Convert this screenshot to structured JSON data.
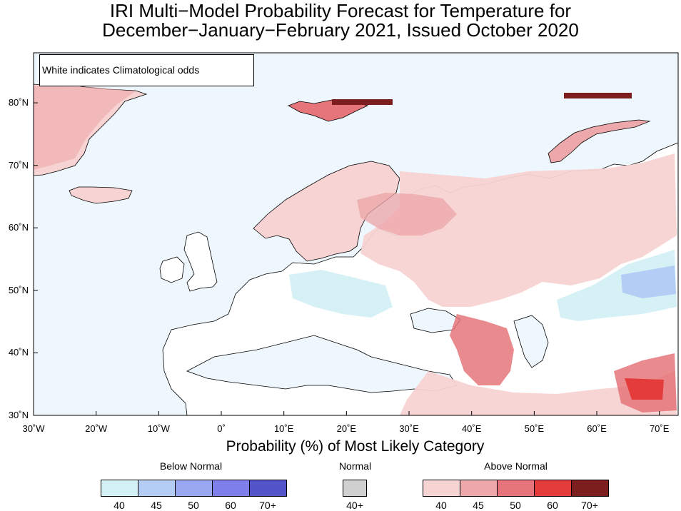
{
  "title": {
    "line1": "IRI Multi−Model Probability Forecast for Temperature for",
    "line2": "December−January−February 2021, Issued October 2020"
  },
  "map": {
    "note": "White indicates Climatological odds",
    "lon_range": [
      -30,
      73
    ],
    "lat_range": [
      30,
      88
    ],
    "lat_labels": [
      "80˚N",
      "70˚N",
      "60˚N",
      "50˚N",
      "40˚N",
      "30˚N"
    ],
    "lon_labels": [
      "30˚W",
      "20˚W",
      "10˚W",
      "0˚",
      "10˚E",
      "20˚E",
      "30˚E",
      "40˚E",
      "50˚E",
      "60˚E",
      "70˚E"
    ],
    "ocean_color": "#eef7fd",
    "land_color": "#ffffff"
  },
  "legend": {
    "title": "Probability (%) of Most Likely Category",
    "below": {
      "label": "Below Normal",
      "bins": [
        {
          "label": "40",
          "color": "#d3f0f5"
        },
        {
          "label": "45",
          "color": "#b3cdf4"
        },
        {
          "label": "50",
          "color": "#9aa8f2"
        },
        {
          "label": "60",
          "color": "#7e7fea"
        },
        {
          "label": "70+",
          "color": "#5354c8"
        }
      ]
    },
    "normal": {
      "label": "Normal",
      "bins": [
        {
          "label": "40+",
          "color": "#d0d0d0"
        }
      ]
    },
    "above": {
      "label": "Above Normal",
      "bins": [
        {
          "label": "40",
          "color": "#f8d3d3"
        },
        {
          "label": "45",
          "color": "#eca8aa"
        },
        {
          "label": "50",
          "color": "#e5757a"
        },
        {
          "label": "60",
          "color": "#e33c3a"
        },
        {
          "label": "70+",
          "color": "#7c1e1e"
        }
      ]
    }
  }
}
